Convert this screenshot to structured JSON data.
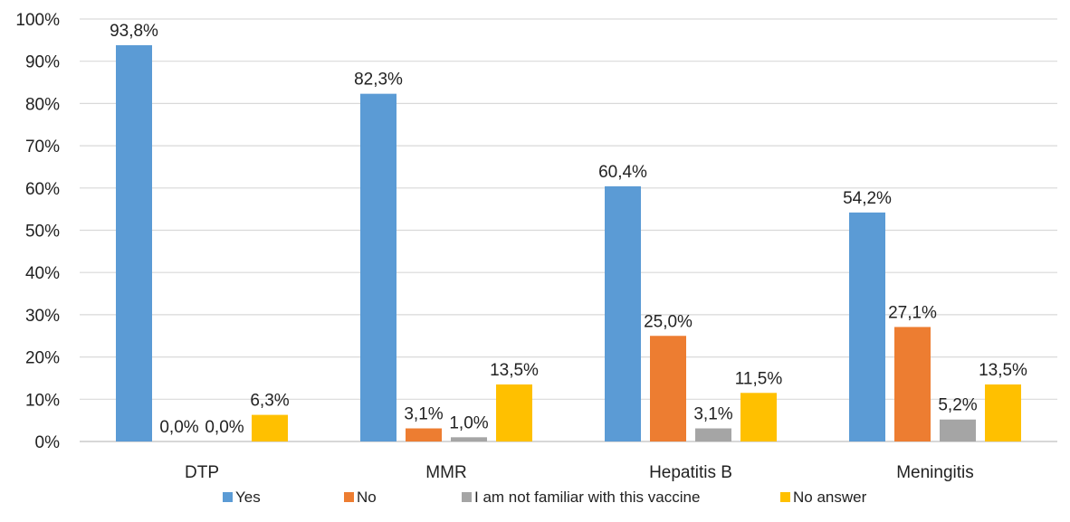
{
  "chart_data": {
    "type": "bar",
    "title": "",
    "xlabel": "",
    "ylabel": "",
    "categories": [
      "DTP",
      "MMR",
      "Hepatitis B",
      "Meningitis"
    ],
    "series": [
      {
        "name": "Yes",
        "color": "#5B9BD5",
        "values": [
          93.8,
          82.3,
          60.4,
          54.2
        ],
        "labels": [
          "93,8%",
          "82,3%",
          "60,4%",
          "54,2%"
        ]
      },
      {
        "name": "No",
        "color": "#ED7D31",
        "values": [
          0.0,
          3.1,
          25.0,
          27.1
        ],
        "labels": [
          "0,0%",
          "3,1%",
          "25,0%",
          "27,1%"
        ]
      },
      {
        "name": "I am not familiar with this vaccine",
        "color": "#A5A5A5",
        "values": [
          0.0,
          1.0,
          3.1,
          5.2
        ],
        "labels": [
          "0,0%",
          "1,0%",
          "3,1%",
          "5,2%"
        ]
      },
      {
        "name": "No answer",
        "color": "#FFC000",
        "values": [
          6.3,
          13.5,
          11.5,
          13.5
        ],
        "labels": [
          "6,3%",
          "13,5%",
          "11,5%",
          "13,5%"
        ]
      }
    ],
    "ylim": [
      0,
      100
    ],
    "yticks": [
      0,
      10,
      20,
      30,
      40,
      50,
      60,
      70,
      80,
      90,
      100
    ],
    "ytick_labels": [
      "0%",
      "10%",
      "20%",
      "30%",
      "40%",
      "50%",
      "60%",
      "70%",
      "80%",
      "90%",
      "100%"
    ],
    "grid": true,
    "legend_position": "bottom",
    "gridline_color": "#D9D9D9",
    "axis_color": "#BFBFBF"
  }
}
